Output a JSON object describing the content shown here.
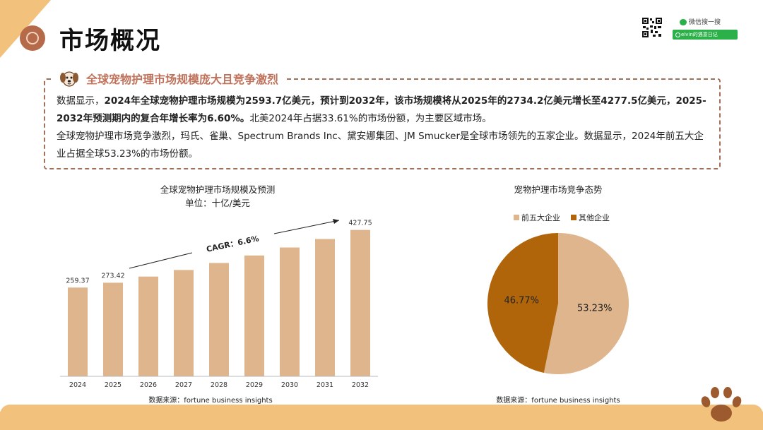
{
  "colors": {
    "accent": "#c0715a",
    "bar": "#deb58d",
    "pie_top5": "#deb58d",
    "pie_other": "#b0650a",
    "band": "#f2c27c"
  },
  "header": {
    "title": "市场概况"
  },
  "wechat": {
    "search_label": "微信搜一搜",
    "search_value": "elvin的遇意日记"
  },
  "info": {
    "heading": "全球宠物护理市场规模庞大且竞争激烈",
    "p1_prefix": "数据显示，",
    "p1_bold": "2024年全球宠物护理市场规模为2593.7亿美元，预计到2032年，该市场规模将从2025年的2734.2亿美元增长至4277.5亿美元，2025-2032年预测期内的复合年增长率为6.60%。",
    "p1_suffix": "北美2024年占据33.61%的市场份额，为主要区域市场。",
    "p2": "全球宠物护理市场竞争激烈，玛氏、雀巢、Spectrum Brands Inc、黛安娜集团、JM Smucker是全球市场领先的五家企业。数据显示，2024年前五大企业占据全球53.23%的市场份额。"
  },
  "chart_data": [
    {
      "type": "bar",
      "title": "全球宠物护理市场规模及预测",
      "subtitle": "单位：十亿/美元",
      "categories": [
        "2024",
        "2025",
        "2026",
        "2027",
        "2028",
        "2029",
        "2030",
        "2031",
        "2032"
      ],
      "values": [
        259.37,
        273.42,
        291.5,
        310.7,
        331.2,
        353.1,
        376.4,
        401.2,
        427.75
      ],
      "data_labels": {
        "2024": "259.37",
        "2025": "273.42",
        "2032": "427.75"
      },
      "annotation": "CAGR：6.6%",
      "ylim": [
        0,
        460
      ],
      "source": "数据来源：fortune business insights"
    },
    {
      "type": "pie",
      "title": "宠物护理市场竞争态势",
      "series": [
        {
          "name": "前五大企业",
          "value": 53.23,
          "label": "53.23%",
          "color": "#deb58d"
        },
        {
          "name": "其他企业",
          "value": 46.77,
          "label": "46.77%",
          "color": "#b0650a"
        }
      ],
      "legend_position": "top",
      "source": "数据来源：fortune business insights"
    }
  ]
}
